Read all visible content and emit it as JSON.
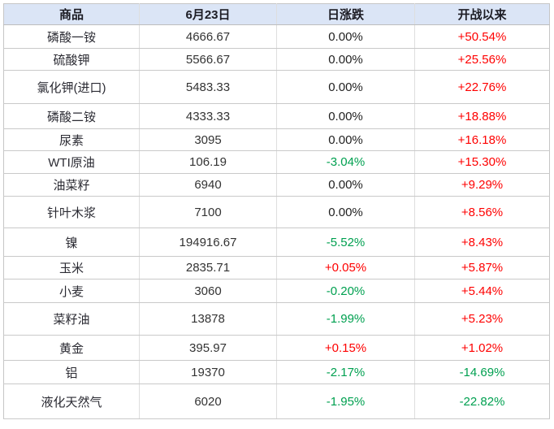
{
  "colors": {
    "up": "#fe0000",
    "down": "#00a050",
    "flat": "#1f1f1f",
    "header_bg": "#dbe5f6"
  },
  "chart_data": {
    "type": "table",
    "columns": [
      "商品",
      "6月23日",
      "日涨跌",
      "开战以来"
    ],
    "rows": [
      {
        "name": "磷酸一铵",
        "price": "4666.67",
        "daily": "0.00%",
        "daily_trend": "flat",
        "since": "+50.54%",
        "since_trend": "up"
      },
      {
        "name": "硫酸钾",
        "price": "5566.67",
        "daily": "0.00%",
        "daily_trend": "flat",
        "since": "+25.56%",
        "since_trend": "up"
      },
      {
        "name": "氯化钾(进口)",
        "price": "5483.33",
        "daily": "0.00%",
        "daily_trend": "flat",
        "since": "+22.76%",
        "since_trend": "up"
      },
      {
        "name": "磷酸二铵",
        "price": "4333.33",
        "daily": "0.00%",
        "daily_trend": "flat",
        "since": "+18.88%",
        "since_trend": "up"
      },
      {
        "name": "尿素",
        "price": "3095",
        "daily": "0.00%",
        "daily_trend": "flat",
        "since": "+16.18%",
        "since_trend": "up"
      },
      {
        "name": "WTI原油",
        "price": "106.19",
        "daily": "-3.04%",
        "daily_trend": "down",
        "since": "+15.30%",
        "since_trend": "up"
      },
      {
        "name": "油菜籽",
        "price": "6940",
        "daily": "0.00%",
        "daily_trend": "flat",
        "since": "+9.29%",
        "since_trend": "up"
      },
      {
        "name": "针叶木浆",
        "price": "7100",
        "daily": "0.00%",
        "daily_trend": "flat",
        "since": "+8.56%",
        "since_trend": "up"
      },
      {
        "name": "镍",
        "price": "194916.67",
        "daily": "-5.52%",
        "daily_trend": "down",
        "since": "+8.43%",
        "since_trend": "up"
      },
      {
        "name": "玉米",
        "price": "2835.71",
        "daily": "+0.05%",
        "daily_trend": "up",
        "since": "+5.87%",
        "since_trend": "up"
      },
      {
        "name": "小麦",
        "price": "3060",
        "daily": "-0.20%",
        "daily_trend": "down",
        "since": "+5.44%",
        "since_trend": "up"
      },
      {
        "name": "菜籽油",
        "price": "13878",
        "daily": "-1.99%",
        "daily_trend": "down",
        "since": "+5.23%",
        "since_trend": "up"
      },
      {
        "name": "黄金",
        "price": "395.97",
        "daily": "+0.15%",
        "daily_trend": "up",
        "since": "+1.02%",
        "since_trend": "up"
      },
      {
        "name": "铝",
        "price": "19370",
        "daily": "-2.17%",
        "daily_trend": "down",
        "since": "-14.69%",
        "since_trend": "down"
      },
      {
        "name": "液化天然气",
        "price": "6020",
        "daily": "-1.95%",
        "daily_trend": "down",
        "since": "-22.82%",
        "since_trend": "down"
      }
    ]
  }
}
